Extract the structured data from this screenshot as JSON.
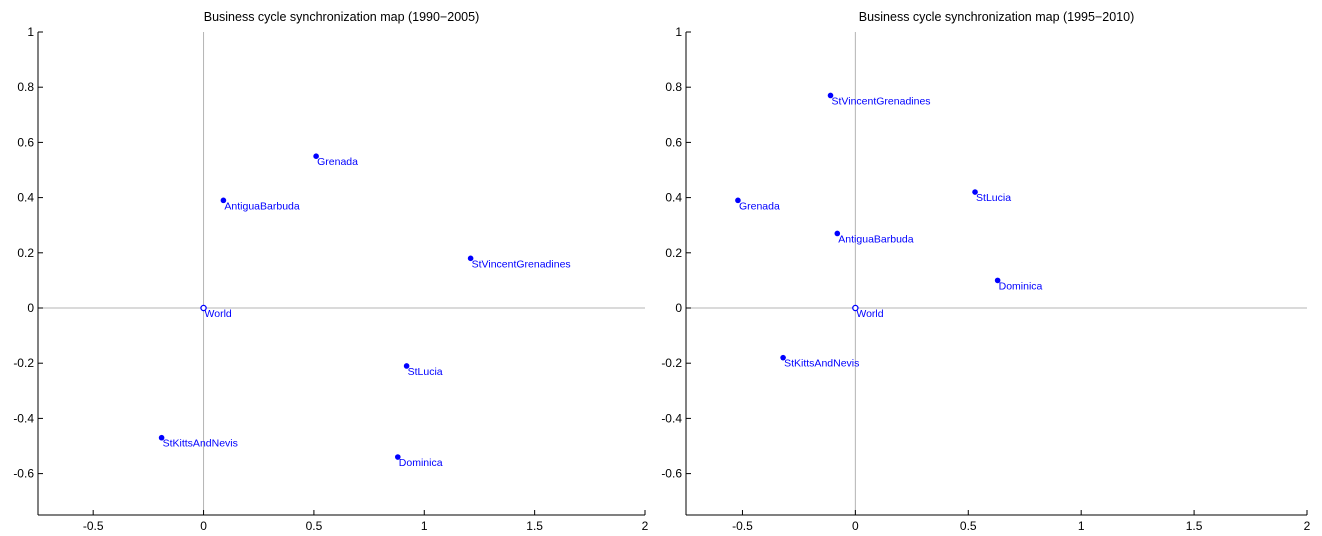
{
  "chart_data": [
    {
      "type": "scatter",
      "title": "Business cycle synchronization map (1990−2005)",
      "xlim": [
        -0.75,
        2
      ],
      "ylim": [
        -0.75,
        1
      ],
      "xticks": [
        -0.5,
        0,
        0.5,
        1,
        1.5,
        2
      ],
      "xtick_labels": [
        "-0.5",
        "0",
        "0.5",
        "1",
        "1.5",
        "2"
      ],
      "yticks": [
        1,
        0.8,
        0.6,
        0.4,
        0.2,
        0,
        -0.2,
        -0.4,
        -0.6
      ],
      "ytick_labels": [
        "1",
        "0.8",
        "0.6",
        "0.4",
        "0.2",
        "0",
        "-0.2",
        "-0.4",
        "-0.6"
      ],
      "zero_lines": true,
      "marker_color": "#0000ff",
      "points": [
        {
          "label": "World",
          "x": 0,
          "y": 0,
          "hollow": true
        },
        {
          "label": "Grenada",
          "x": 0.51,
          "y": 0.55
        },
        {
          "label": "AntiguaBarbuda",
          "x": 0.09,
          "y": 0.39
        },
        {
          "label": "StVincentGrenadines",
          "x": 1.21,
          "y": 0.18
        },
        {
          "label": "StLucia",
          "x": 0.92,
          "y": -0.21
        },
        {
          "label": "StKittsAndNevis",
          "x": -0.19,
          "y": -0.47
        },
        {
          "label": "Dominica",
          "x": 0.88,
          "y": -0.54
        }
      ]
    },
    {
      "type": "scatter",
      "title": "Business cycle synchronization map (1995−2010)",
      "xlim": [
        -0.75,
        2
      ],
      "ylim": [
        -0.75,
        1
      ],
      "xticks": [
        -0.5,
        0,
        0.5,
        1,
        1.5,
        2
      ],
      "xtick_labels": [
        "-0.5",
        "0",
        "0.5",
        "1",
        "1.5",
        "2"
      ],
      "yticks": [
        1,
        0.8,
        0.6,
        0.4,
        0.2,
        0,
        -0.2,
        -0.4,
        -0.6
      ],
      "ytick_labels": [
        "1",
        "0.8",
        "0.6",
        "0.4",
        "0.2",
        "0",
        "-0.2",
        "-0.4",
        "-0.6"
      ],
      "zero_lines": true,
      "marker_color": "#0000ff",
      "points": [
        {
          "label": "World",
          "x": 0,
          "y": 0,
          "hollow": true
        },
        {
          "label": "StVincentGrenadines",
          "x": -0.11,
          "y": 0.77
        },
        {
          "label": "Grenada",
          "x": -0.52,
          "y": 0.39
        },
        {
          "label": "StLucia",
          "x": 0.53,
          "y": 0.42
        },
        {
          "label": "AntiguaBarbuda",
          "x": -0.08,
          "y": 0.27
        },
        {
          "label": "Dominica",
          "x": 0.63,
          "y": 0.1
        },
        {
          "label": "StKittsAndNevis",
          "x": -0.32,
          "y": -0.18
        }
      ]
    }
  ]
}
